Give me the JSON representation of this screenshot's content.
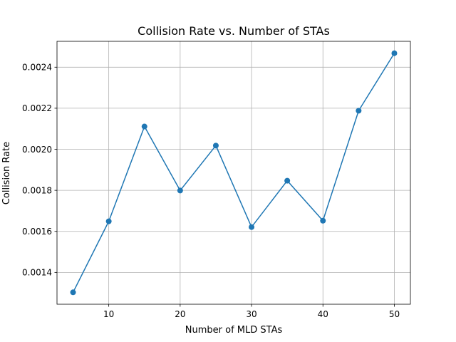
{
  "chart_data": {
    "type": "line",
    "title": "Collision Rate vs. Number of STAs",
    "xlabel": "Number of MLD STAs",
    "ylabel": "Collision Rate",
    "x": [
      5,
      10,
      15,
      20,
      25,
      30,
      35,
      40,
      45,
      50
    ],
    "series": [
      {
        "values": [
          0.001303,
          0.001649,
          0.002111,
          0.001799,
          0.002018,
          0.001621,
          0.001847,
          0.001652,
          0.002188,
          0.002468
        ],
        "color": "#1f77b4",
        "marker": "circle"
      }
    ],
    "xlim": [
      2.75,
      52.25
    ],
    "ylim": [
      0.001245,
      0.002526
    ],
    "xticks": [
      10,
      20,
      30,
      40,
      50
    ],
    "xtick_labels": [
      "10",
      "20",
      "30",
      "40",
      "50"
    ],
    "yticks": [
      0.0014,
      0.0016,
      0.0018,
      0.002,
      0.0022,
      0.0024
    ],
    "ytick_labels": [
      "0.0014",
      "0.0016",
      "0.0018",
      "0.0020",
      "0.0022",
      "0.0024"
    ],
    "grid": true,
    "legend": "none"
  }
}
